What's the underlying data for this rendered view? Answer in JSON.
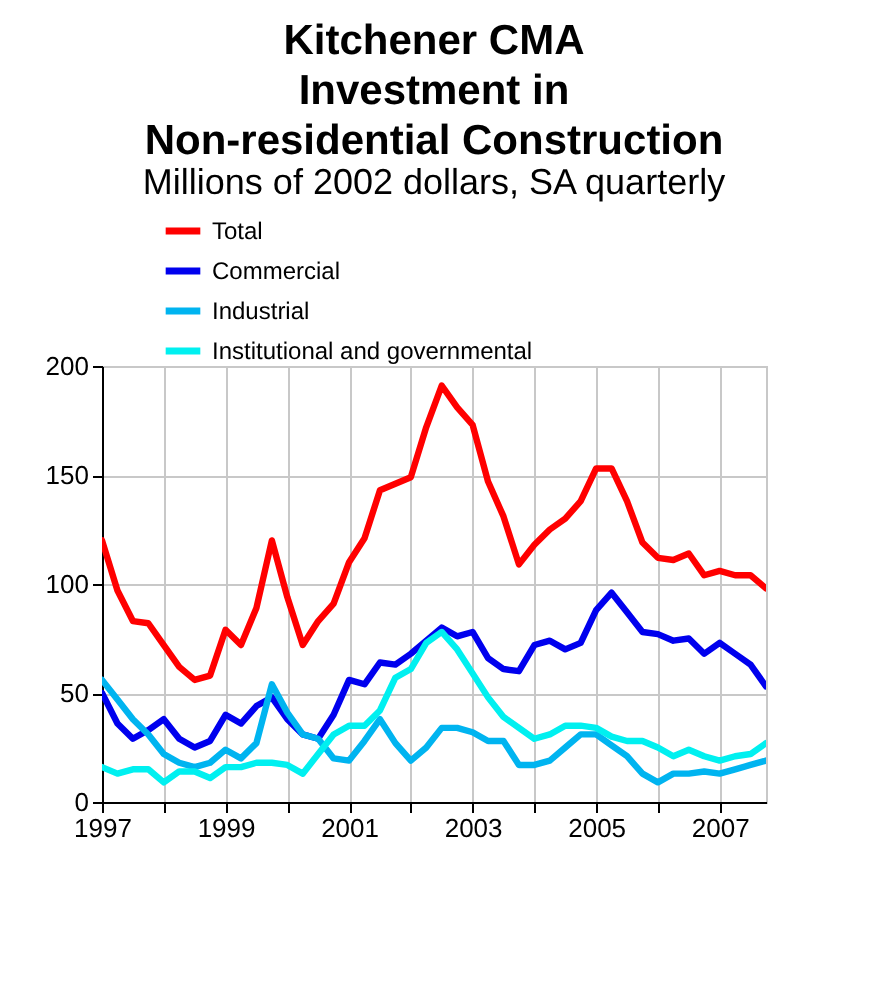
{
  "chart_data": {
    "type": "line",
    "title": "Kitchener CMA\nInvestment in\nNon-residential Construction",
    "subtitle": "Millions of 2002 dollars, SA quarterly",
    "x": [
      1997,
      1997.25,
      1997.5,
      1997.75,
      1998,
      1998.25,
      1998.5,
      1998.75,
      1999,
      1999.25,
      1999.5,
      1999.75,
      2000,
      2000.25,
      2000.5,
      2000.75,
      2001,
      2001.25,
      2001.5,
      2001.75,
      2002,
      2002.25,
      2002.5,
      2002.75,
      2003,
      2003.25,
      2003.5,
      2003.75,
      2004,
      2004.25,
      2004.5,
      2004.75,
      2005,
      2005.25,
      2005.5,
      2005.75,
      2006,
      2006.25,
      2006.5,
      2006.75,
      2007,
      2007.25,
      2007.5,
      2007.75
    ],
    "series": [
      {
        "name": "Total",
        "color": "#ff0000",
        "values": [
          120,
          97,
          83,
          82,
          72,
          62,
          56,
          58,
          79,
          72,
          89,
          120,
          94,
          72,
          83,
          91,
          110,
          121,
          143,
          146,
          149,
          172,
          191,
          181,
          173,
          147,
          131,
          109,
          118,
          125,
          130,
          138,
          153,
          153,
          138,
          119,
          112,
          111,
          114,
          104,
          106,
          104,
          104,
          98
        ]
      },
      {
        "name": "Commercial",
        "color": "#0000ee",
        "values": [
          50,
          36,
          29,
          33,
          38,
          29,
          25,
          28,
          40,
          36,
          44,
          48,
          38,
          31,
          29,
          40,
          56,
          54,
          64,
          63,
          68,
          74,
          80,
          76,
          78,
          66,
          61,
          60,
          72,
          74,
          70,
          73,
          88,
          96,
          87,
          78,
          77,
          74,
          75,
          68,
          73,
          68,
          63,
          53
        ]
      },
      {
        "name": "Industrial",
        "color": "#00b4f0",
        "values": [
          56,
          47,
          38,
          31,
          22,
          18,
          16,
          18,
          24,
          20,
          27,
          54,
          41,
          31,
          29,
          20,
          19,
          28,
          38,
          27,
          19,
          25,
          34,
          34,
          32,
          28,
          28,
          17,
          17,
          19,
          25,
          31,
          31,
          26,
          21,
          13,
          9,
          13,
          13,
          14,
          13,
          15,
          17,
          19
        ]
      },
      {
        "name": "Institutional and governmental",
        "color": "#00f0f0",
        "values": [
          16,
          13,
          15,
          15,
          9,
          14,
          14,
          11,
          16,
          16,
          18,
          18,
          17,
          13,
          22,
          31,
          35,
          35,
          42,
          57,
          61,
          73,
          78,
          70,
          59,
          48,
          39,
          34,
          29,
          31,
          35,
          35,
          34,
          30,
          28,
          28,
          25,
          21,
          24,
          21,
          19,
          21,
          22,
          27
        ]
      }
    ],
    "xlim": [
      1997,
      2007.75
    ],
    "xticks": [
      1997,
      {
        "value": 1998,
        "label": null
      },
      1999,
      {
        "value": 2000,
        "label": null
      },
      2001,
      {
        "value": 2002,
        "label": null
      },
      2003,
      {
        "value": 2004,
        "label": null
      },
      2005,
      {
        "value": 2006,
        "label": null
      },
      2007
    ],
    "ylim": [
      0,
      200
    ],
    "yticks": [
      0,
      50,
      100,
      150,
      200
    ],
    "grid": true,
    "legend": "top",
    "line_style": "solid"
  }
}
